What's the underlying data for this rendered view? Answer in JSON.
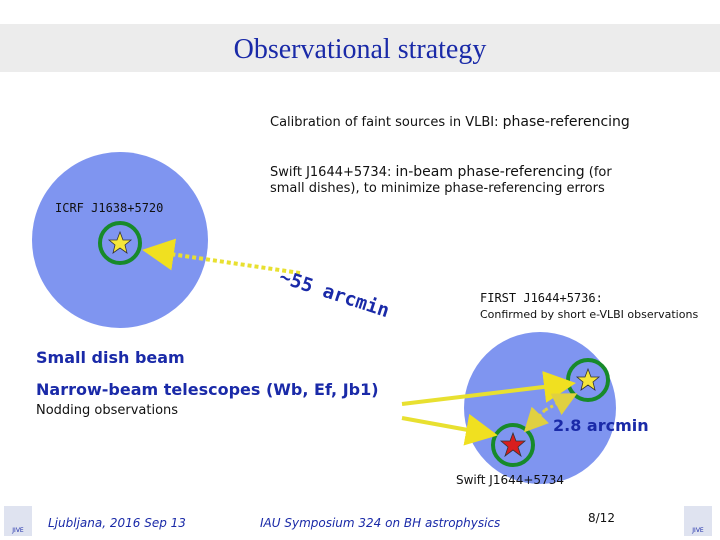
{
  "header": {
    "title": "Observational strategy"
  },
  "notes": {
    "calibration": {
      "lead": "Calibration of faint sources in VLBI: ",
      "emphasis": "phase-referencing"
    },
    "swift": {
      "lead": "Swift J1644+5734: ",
      "emphasis": "in-beam phase-referencing",
      "tail": " (for",
      "line2": "small dishes), to minimize phase-referencing errors"
    }
  },
  "diagram": {
    "icrf_label": "ICRF J1638+5720",
    "separation": "~55 arcmin",
    "first_label": "FIRST J1644+5736:",
    "first_note": "Confirmed by short e-VLBI observations",
    "small_dish": "Small dish beam",
    "narrow_beam": "Narrow-beam telescopes (Wb, Ef, Jb1)",
    "nodding": "Nodding observations",
    "inbeam_separation": "2.8 arcmin",
    "swift_label": "Swift J1644+5734"
  },
  "footer": {
    "place": "Ljubljana, 2016 Sep 13",
    "event": "IAU Symposium 324 on BH astrophysics",
    "page": "8/12",
    "logo": "JIVE"
  }
}
